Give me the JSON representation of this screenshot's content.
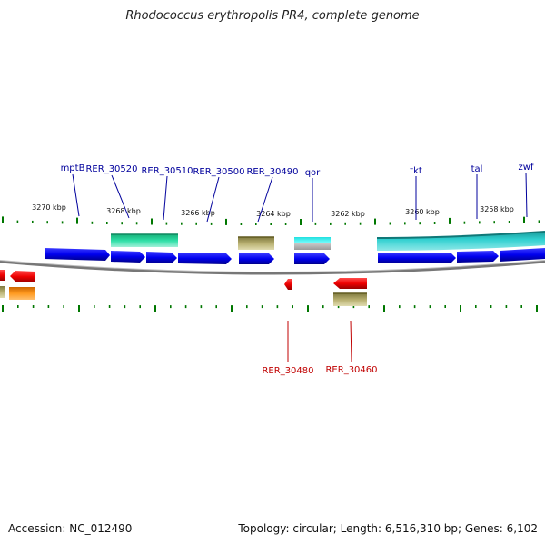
{
  "title": "Rhodococcus erythropolis PR4, complete genome",
  "footer": {
    "accession": "Accession: NC_012490",
    "summary": "Topology: circular; Length: 6,516,310 bp; Genes: 6,102"
  },
  "scale_labels": [
    "3270 kbp",
    "3268 kbp",
    "3266 kbp",
    "3264 kbp",
    "3262 kbp",
    "3260 kbp",
    "3258 kbp"
  ],
  "genes_top": [
    "mptB",
    "RER_30520",
    "RER_30510",
    "RER_30500",
    "RER_30490",
    "qor",
    "tkt",
    "tal",
    "zwf"
  ],
  "genes_bottom": [
    "RER_30480",
    "RER_30460"
  ],
  "colors": {
    "forward_cds": "#0000ee",
    "reverse_cds": "#ee0000",
    "backbone": "#777777",
    "ticks": "#007700",
    "teal": "#20c0c0",
    "green": "#20d8a0",
    "khaki": "#b0a860",
    "orange": "#ff9900"
  }
}
